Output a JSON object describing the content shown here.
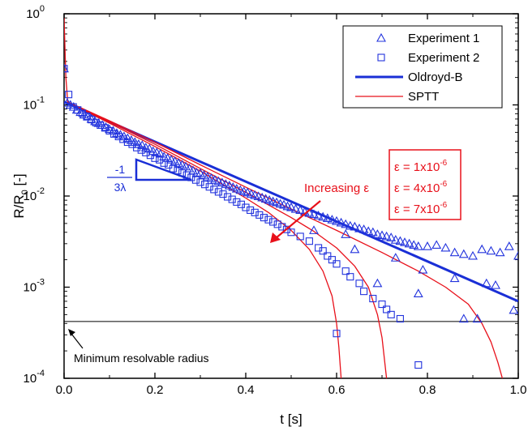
{
  "chart_data": {
    "type": "scatter",
    "title": "",
    "xlabel": "t [s]",
    "ylabel": "R/R",
    "ylabel_sub": "0",
    "ylabel_suffix": " [-]",
    "xlim": [
      0.0,
      1.0
    ],
    "ylim": [
      0.0001,
      1
    ],
    "yscale": "log",
    "grid": false,
    "legend_position": "top-right",
    "x_ticks": [
      {
        "value": 0.0,
        "label": "0.0"
      },
      {
        "value": 0.2,
        "label": "0.2"
      },
      {
        "value": 0.4,
        "label": "0.4"
      },
      {
        "value": 0.6,
        "label": "0.6"
      },
      {
        "value": 0.8,
        "label": "0.8"
      },
      {
        "value": 1.0,
        "label": "1.0"
      }
    ],
    "y_ticks": [
      {
        "value": 1,
        "base": "10",
        "exp": "0"
      },
      {
        "value": 0.1,
        "base": "10",
        "exp": "-1"
      },
      {
        "value": 0.01,
        "base": "10",
        "exp": "-2"
      },
      {
        "value": 0.001,
        "base": "10",
        "exp": "-3"
      },
      {
        "value": 0.0001,
        "base": "10",
        "exp": "-4"
      }
    ],
    "series": [
      {
        "name": "Experiment 1",
        "kind": "marker",
        "marker": "triangle",
        "color": "#2233dd",
        "x": [
          0.0,
          0.007,
          0.014,
          0.021,
          0.028,
          0.036,
          0.044,
          0.052,
          0.06,
          0.068,
          0.076,
          0.084,
          0.092,
          0.1,
          0.108,
          0.116,
          0.124,
          0.132,
          0.14,
          0.148,
          0.156,
          0.164,
          0.172,
          0.18,
          0.188,
          0.196,
          0.204,
          0.212,
          0.22,
          0.228,
          0.236,
          0.244,
          0.252,
          0.26,
          0.268,
          0.276,
          0.284,
          0.292,
          0.3,
          0.308,
          0.316,
          0.324,
          0.332,
          0.34,
          0.348,
          0.356,
          0.364,
          0.372,
          0.38,
          0.388,
          0.396,
          0.404,
          0.412,
          0.42,
          0.428,
          0.436,
          0.444,
          0.452,
          0.46,
          0.468,
          0.476,
          0.484,
          0.492,
          0.5,
          0.51,
          0.52,
          0.53,
          0.54,
          0.55,
          0.56,
          0.57,
          0.58,
          0.59,
          0.6,
          0.61,
          0.62,
          0.63,
          0.64,
          0.65,
          0.66,
          0.67,
          0.68,
          0.69,
          0.7,
          0.71,
          0.72,
          0.73,
          0.74,
          0.75,
          0.76,
          0.77,
          0.78,
          0.8,
          0.82,
          0.84,
          0.86,
          0.88,
          0.9,
          0.92,
          0.94,
          0.96,
          0.98,
          1.0
        ],
        "y": [
          0.25,
          0.105,
          0.1,
          0.095,
          0.088,
          0.083,
          0.078,
          0.074,
          0.07,
          0.066,
          0.063,
          0.06,
          0.057,
          0.054,
          0.052,
          0.049,
          0.047,
          0.045,
          0.043,
          0.041,
          0.039,
          0.037,
          0.036,
          0.034,
          0.033,
          0.031,
          0.03,
          0.029,
          0.027,
          0.026,
          0.025,
          0.024,
          0.023,
          0.022,
          0.021,
          0.02,
          0.019,
          0.018,
          0.0178,
          0.017,
          0.0163,
          0.0157,
          0.015,
          0.0145,
          0.014,
          0.0135,
          0.013,
          0.0125,
          0.012,
          0.0116,
          0.0112,
          0.0109,
          0.0105,
          0.0102,
          0.0099,
          0.0096,
          0.0093,
          0.009,
          0.0087,
          0.0085,
          0.0082,
          0.008,
          0.0077,
          0.0075,
          0.0072,
          0.007,
          0.0067,
          0.0065,
          0.0063,
          0.0061,
          0.0059,
          0.0057,
          0.0055,
          0.0053,
          0.0051,
          0.0049,
          0.0047,
          0.0046,
          0.0044,
          0.0043,
          0.0041,
          0.004,
          0.0038,
          0.0037,
          0.0036,
          0.0035,
          0.0033,
          0.0032,
          0.0031,
          0.003,
          0.0029,
          0.0028,
          0.0028,
          0.0029,
          0.0027,
          0.0024,
          0.0023,
          0.0022,
          0.0026,
          0.0025,
          0.0024,
          0.0028,
          0.0022
        ]
      },
      {
        "name": "Experiment 1",
        "kind": "marker-extra",
        "marker": "triangle",
        "color": "#2233dd",
        "x": [
          0.55,
          0.62,
          0.64,
          0.73,
          0.79,
          0.86,
          0.88,
          0.91,
          0.93,
          0.95,
          0.99,
          0.69,
          0.78
        ],
        "y": [
          0.0042,
          0.0038,
          0.0026,
          0.0021,
          0.00155,
          0.00125,
          0.00045,
          0.00045,
          0.0011,
          0.00105,
          0.00056,
          0.0011,
          0.00085
        ]
      },
      {
        "name": "Experiment 2",
        "kind": "marker",
        "marker": "square",
        "color": "#2233dd",
        "x": [
          0.0,
          0.01,
          0.02,
          0.03,
          0.04,
          0.05,
          0.06,
          0.07,
          0.08,
          0.09,
          0.1,
          0.11,
          0.12,
          0.13,
          0.14,
          0.15,
          0.16,
          0.17,
          0.18,
          0.19,
          0.2,
          0.21,
          0.22,
          0.23,
          0.24,
          0.25,
          0.26,
          0.27,
          0.28,
          0.29,
          0.3,
          0.31,
          0.32,
          0.33,
          0.34,
          0.35,
          0.36,
          0.37,
          0.38,
          0.39,
          0.4,
          0.41,
          0.42,
          0.43,
          0.44,
          0.45,
          0.46,
          0.47,
          0.48,
          0.49,
          0.5,
          0.52,
          0.54,
          0.56,
          0.57,
          0.58,
          0.59,
          0.6,
          0.62,
          0.63,
          0.65,
          0.66,
          0.68,
          0.7,
          0.71,
          0.72,
          0.74,
          0.78,
          0.6
        ],
        "y": [
          0.25,
          0.13,
          0.095,
          0.088,
          0.081,
          0.075,
          0.069,
          0.064,
          0.06,
          0.056,
          0.052,
          0.048,
          0.045,
          0.042,
          0.039,
          0.037,
          0.034,
          0.032,
          0.03,
          0.028,
          0.026,
          0.025,
          0.023,
          0.022,
          0.02,
          0.019,
          0.018,
          0.017,
          0.016,
          0.015,
          0.0142,
          0.0134,
          0.0126,
          0.0118,
          0.0111,
          0.0105,
          0.0098,
          0.0092,
          0.0086,
          0.0081,
          0.0075,
          0.007,
          0.0066,
          0.0062,
          0.0058,
          0.0055,
          0.0052,
          0.0049,
          0.0046,
          0.0043,
          0.004,
          0.0036,
          0.0032,
          0.0027,
          0.0025,
          0.0022,
          0.002,
          0.0018,
          0.0015,
          0.0013,
          0.0011,
          0.0009,
          0.00075,
          0.00065,
          0.00057,
          0.0005,
          0.00045,
          0.00014,
          0.00031
        ]
      },
      {
        "name": "Oldroyd-B",
        "kind": "line",
        "color": "#1a2fd6",
        "width": 3,
        "x": [
          0.0,
          1.0
        ],
        "y": [
          0.108,
          0.0007
        ]
      },
      {
        "name": "SPTT",
        "kind": "line",
        "color": "#e8101a",
        "width": 1.3,
        "x": [
          0.0,
          0.004,
          0.008,
          0.1,
          0.2,
          0.3,
          0.4,
          0.45,
          0.5,
          0.54,
          0.57,
          0.59,
          0.6,
          0.605,
          0.61
        ],
        "y": [
          0.9,
          0.2,
          0.108,
          0.063,
          0.035,
          0.0188,
          0.0095,
          0.0066,
          0.0042,
          0.0026,
          0.0015,
          0.0008,
          0.0004,
          0.00022,
          0.0001
        ]
      },
      {
        "name": "SPTT",
        "kind": "line-extra",
        "color": "#e8101a",
        "width": 1.3,
        "x": [
          0.008,
          0.1,
          0.2,
          0.3,
          0.4,
          0.5,
          0.55,
          0.6,
          0.64,
          0.67,
          0.69,
          0.7,
          0.71
        ],
        "y": [
          0.108,
          0.065,
          0.037,
          0.02,
          0.011,
          0.0058,
          0.0041,
          0.0027,
          0.0017,
          0.001,
          0.0005,
          0.00028,
          0.0001
        ]
      },
      {
        "name": "SPTT",
        "kind": "line-extra",
        "color": "#e8101a",
        "width": 1.3,
        "x": [
          0.008,
          0.1,
          0.2,
          0.3,
          0.4,
          0.5,
          0.6,
          0.7,
          0.78,
          0.84,
          0.89,
          0.92,
          0.94,
          0.955,
          0.965
        ],
        "y": [
          0.108,
          0.067,
          0.039,
          0.022,
          0.0125,
          0.0072,
          0.0042,
          0.0024,
          0.0015,
          0.001,
          0.00065,
          0.0004,
          0.00025,
          0.00015,
          0.0001
        ]
      }
    ],
    "legend": [
      {
        "label": "Experiment 1",
        "symbol": "triangle",
        "color": "#2233dd"
      },
      {
        "label": "Experiment 2",
        "symbol": "square",
        "color": "#2233dd"
      },
      {
        "label": "Oldroyd-B",
        "symbol": "thick-line",
        "color": "#1a2fd6"
      },
      {
        "label": "SPTT",
        "symbol": "thin-line",
        "color": "#e8101a"
      }
    ],
    "annotations": {
      "slope_numerator": "-1",
      "slope_denominator": "3λ",
      "increasing_label": "Increasing ε",
      "epsilon_values": [
        "ε = 1x10",
        "ε = 4x10",
        "ε = 7x10"
      ],
      "epsilon_exponent": "-6",
      "min_radius_label": "Minimum resolvable radius",
      "min_radius_value": 0.00042
    },
    "colors": {
      "blue": "#1a2fd6",
      "red": "#e8101a",
      "black": "#000000"
    }
  }
}
